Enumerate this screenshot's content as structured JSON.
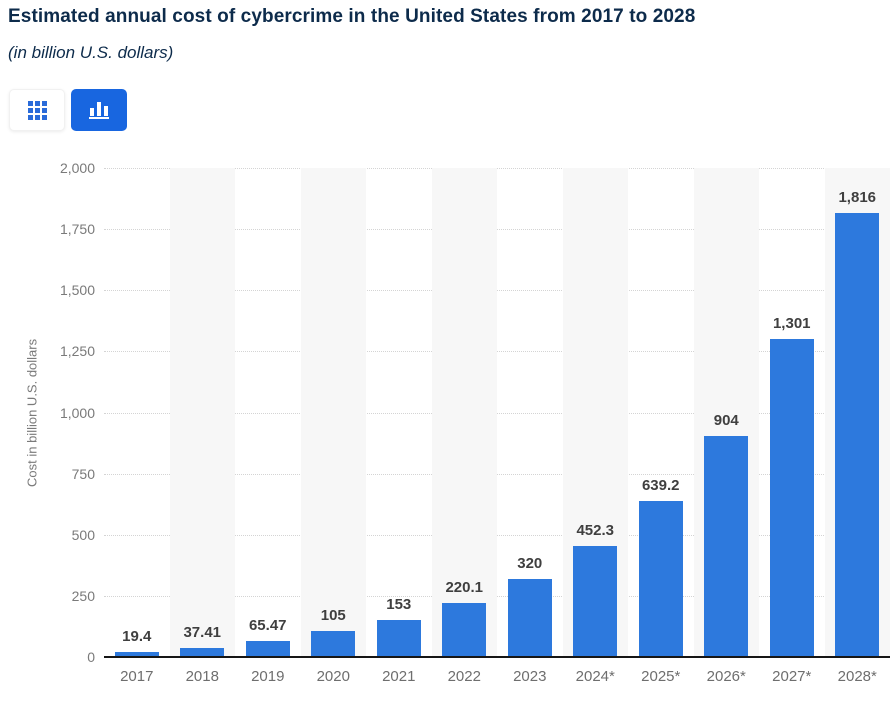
{
  "header": {
    "title": "Estimated annual cost of cybercrime in the United States from 2017 to 2028",
    "subtitle": "(in billion U.S. dollars)"
  },
  "toolbar": {
    "table_view_button": "table view",
    "chart_view_button": "column chart view",
    "active_view": "chart"
  },
  "colors": {
    "bar": "#2d79dd",
    "active_button": "#1866e0",
    "grid_icon_blue": "#2a6bd9",
    "title_navy": "#0d2b4b",
    "column_band": "#f7f7f7",
    "gridline": "#d4d4d4",
    "axis_text": "#7a7a7a",
    "value_label": "#3f3f3f",
    "x_label": "#6e6e6e",
    "baseline": "#161616"
  },
  "chart_data": {
    "type": "bar",
    "title": "Estimated annual cost of cybercrime in the United States from 2017 to 2028",
    "subtitle": "(in billion U.S. dollars)",
    "categories": [
      "2017",
      "2018",
      "2019",
      "2020",
      "2021",
      "2022",
      "2023",
      "2024*",
      "2025*",
      "2026*",
      "2027*",
      "2028*"
    ],
    "values": [
      19.4,
      37.41,
      65.47,
      105,
      153,
      220.1,
      320,
      452.3,
      639.2,
      904,
      1301,
      1816
    ],
    "value_labels": [
      "19.4",
      "37.41",
      "65.47",
      "105",
      "153",
      "220.1",
      "320",
      "452.3",
      "639.2",
      "904",
      "1,301",
      "1,816"
    ],
    "xlabel": "",
    "ylabel": "Cost in billion U.S. dollars",
    "ylim": [
      0,
      2000
    ],
    "ytick_interval": 250,
    "ytick_labels": [
      "0",
      "250",
      "500",
      "750",
      "1,000",
      "1,250",
      "1,500",
      "1,750",
      "2,000"
    ],
    "grid": "horizontal-dotted",
    "legend": "none",
    "band_columns": "alternate starting with second column"
  }
}
